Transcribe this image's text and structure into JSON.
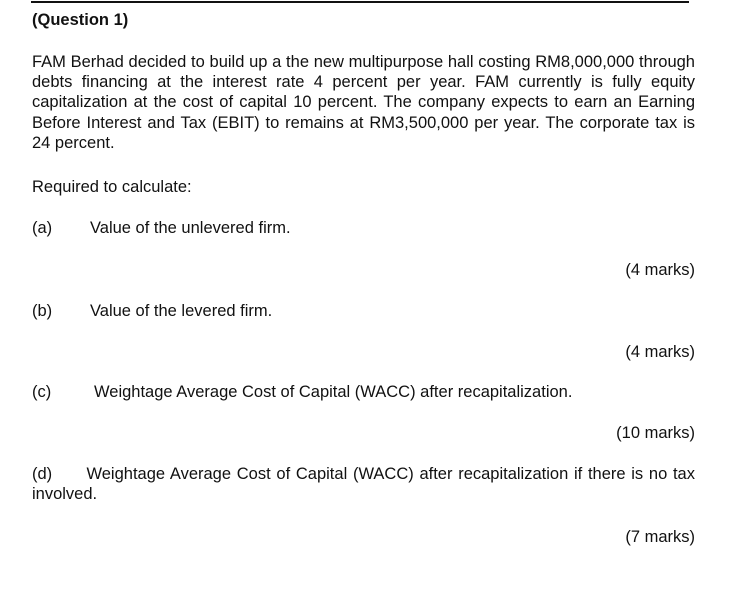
{
  "title": "(Question 1)",
  "paragraph": "FAM Berhad decided to build up a the new multipurpose hall costing RM8,000,000 through debts financing at the interest rate 4 percent per year. FAM currently is fully equity capitalization at the cost of capital 10 percent. The company expects to earn an Earning Before Interest and Tax (EBIT) to remains at RM3,500,000 per year. The corporate tax is 24 percent.",
  "required": "Required to calculate:",
  "parts": [
    {
      "label": "(a)",
      "text": "Value of the unlevered firm.",
      "marks": "(4 marks)"
    },
    {
      "label": "(b)",
      "text": "Value of the levered firm.",
      "marks": "(4 marks)"
    },
    {
      "label": "(c)",
      "text": "Weightage Average Cost of Capital (WACC) after recapitalization.",
      "marks": "(10 marks)"
    },
    {
      "label": "(d)",
      "text": "Weightage Average Cost of Capital (WACC) after recapitalization if there is no tax involved.",
      "marks": "(7 marks)"
    }
  ]
}
